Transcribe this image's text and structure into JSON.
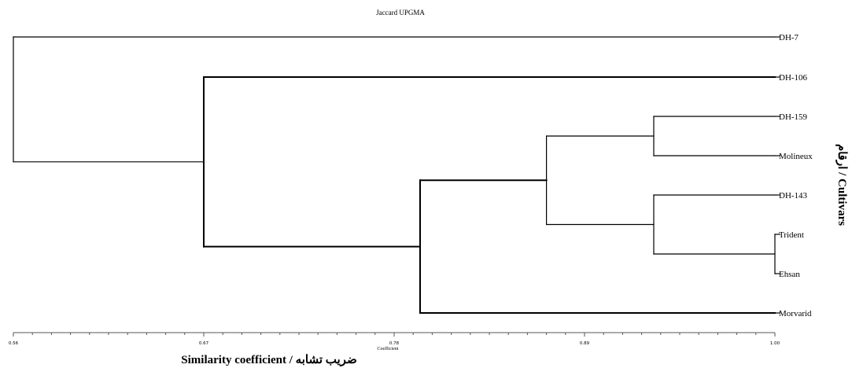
{
  "chart_data": {
    "type": "dendrogram",
    "title": "Jaccard UPGMA",
    "xlabel_small": "Coefficient",
    "xlabel": "Similarity coefficient / ضریب تشابه",
    "ylabel": "ارقام / Cultivars",
    "xlim": [
      0.56,
      1.0
    ],
    "ticks": [
      {
        "value": 0.56,
        "label": "0.56"
      },
      {
        "value": 0.67,
        "label": "0.67"
      },
      {
        "value": 0.78,
        "label": "0.78"
      },
      {
        "value": 0.89,
        "label": "0.89"
      },
      {
        "value": 1.0,
        "label": "1.00"
      }
    ],
    "leaves": [
      "DH-7",
      "DH-106",
      "DH-159",
      "Molineux",
      "DH-143",
      "Trident",
      "Ehsan",
      "Morvarid"
    ],
    "merges": [
      {
        "left": "Trident",
        "right": "Ehsan",
        "similarity": 1.0
      },
      {
        "left": "DH-159",
        "right": "Molineux",
        "similarity": 0.93
      },
      {
        "left": "DH-143",
        "right": "Trident+Ehsan",
        "similarity": 0.93
      },
      {
        "left": "DH-159+Molineux",
        "right": "DH-143+Trident+Ehsan",
        "similarity": 0.868
      },
      {
        "left": "DH-159+Molineux+DH-143+Trident+Ehsan",
        "right": "Morvarid",
        "similarity": 0.795
      },
      {
        "left": "DH-106",
        "right": "DH-159+Molineux+DH-143+Trident+Ehsan+Morvarid",
        "similarity": 0.67
      },
      {
        "left": "DH-7",
        "right": "DH-106+DH-159+Molineux+DH-143+Trident+Ehsan+Morvarid",
        "similarity": 0.56
      }
    ]
  }
}
